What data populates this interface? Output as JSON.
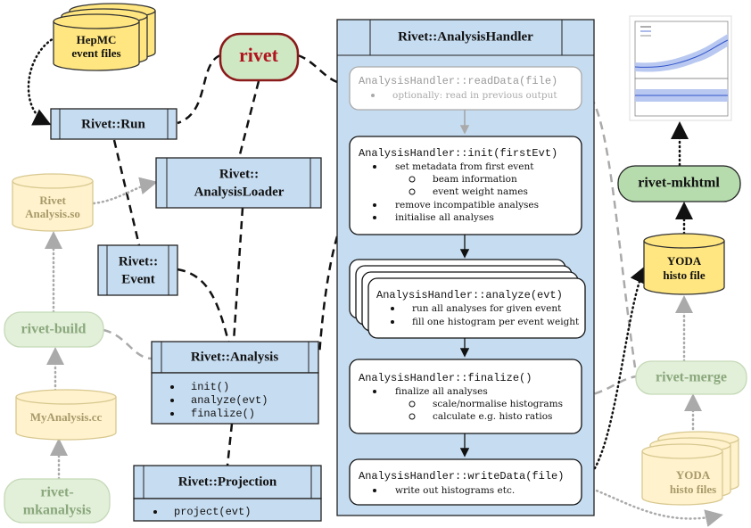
{
  "nodes": {
    "hepmc": {
      "lines": [
        "HepMC",
        "event files"
      ]
    },
    "rivet": {
      "label": "rivet"
    },
    "run": {
      "label": "Rivet::Run"
    },
    "loader": {
      "lines": [
        "Rivet::",
        "AnalysisLoader"
      ]
    },
    "analysis_so": {
      "lines": [
        "Rivet",
        "Analysis.so"
      ]
    },
    "event": {
      "lines": [
        "Rivet::",
        "Event"
      ]
    },
    "rivet_build": {
      "label": "rivet-build"
    },
    "analysis": {
      "label": "Rivet::Analysis",
      "methods": [
        "init()",
        "analyze(evt)",
        "finalize()"
      ]
    },
    "my_analysis": {
      "label": "MyAnalysis.cc"
    },
    "mkanalysis": {
      "lines": [
        "rivet-",
        "mkanalysis"
      ]
    },
    "projection": {
      "label": "Rivet::Projection",
      "methods": [
        "project(evt)"
      ]
    },
    "mkhtml": {
      "label": "rivet-mkhtml"
    },
    "yoda": {
      "lines": [
        "YODA",
        "histo file"
      ]
    },
    "merge": {
      "label": "rivet-merge"
    },
    "yoda_files": {
      "lines": [
        "YODA",
        "histo files"
      ]
    }
  },
  "handler": {
    "title": "Rivet::AnalysisHandler",
    "read": {
      "method": "AnalysisHandler::readData(file)",
      "items": [
        "optionally: read in previous output"
      ]
    },
    "init": {
      "method": "AnalysisHandler::init(firstEvt)",
      "items": [
        "set metadata from first event",
        "remove incompatible analyses",
        "initialise all analyses"
      ],
      "sub": [
        "beam information",
        "event weight names"
      ]
    },
    "analyze": {
      "method": "AnalysisHandler::analyze(evt)",
      "items": [
        "run all analyses for given event",
        "fill one histogram per event weight"
      ]
    },
    "finalize": {
      "method": "AnalysisHandler::finalize()",
      "items": [
        "finalize all analyses"
      ],
      "sub": [
        "scale/normalise histograms",
        "calculate e.g. histo ratios"
      ]
    },
    "write": {
      "method": "AnalysisHandler::writeData(file)",
      "items": [
        "write out histograms etc."
      ]
    }
  }
}
